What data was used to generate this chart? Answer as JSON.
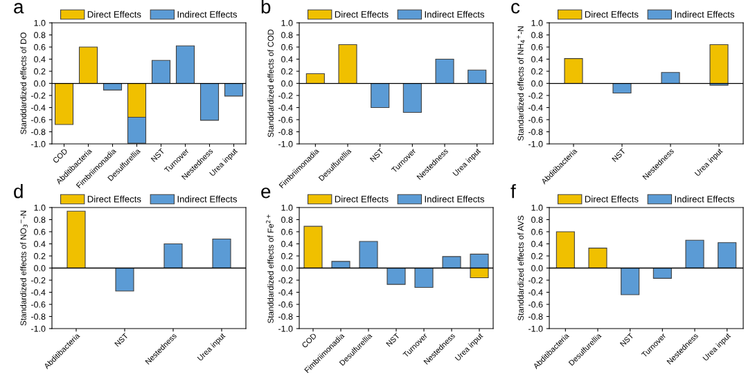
{
  "chart_data": [
    {
      "type": "bar",
      "stacked": true,
      "annotations": [
        "a"
      ],
      "ylabel": "Standdardized effects of DO",
      "categories": [
        "COD",
        "Abditibacteria",
        "Fimbriimonadia",
        "Desulfurellia",
        "NST",
        "Turnover",
        "Nestedness",
        "Urea input"
      ],
      "legend": "top",
      "series": [
        {
          "name": "Direct Effects",
          "color": "#f0c000",
          "values": [
            -0.68,
            0.6,
            null,
            -0.56,
            null,
            null,
            null,
            null
          ]
        },
        {
          "name": "Indirect Effects",
          "color": "#5b9bd5",
          "values": [
            null,
            null,
            -0.11,
            -0.43,
            0.38,
            0.62,
            -0.61,
            -0.21
          ]
        }
      ],
      "ylim": [
        -1.0,
        1.0
      ],
      "yticks": [
        {
          "value": -1.0,
          "label": "-1.0"
        },
        {
          "value": -0.8,
          "label": "-0.8"
        },
        {
          "value": -0.6,
          "label": "-0.6"
        },
        {
          "value": -0.4,
          "label": "-0.4"
        },
        {
          "value": -0.2,
          "label": "-0.2"
        },
        {
          "value": 0,
          "label": "0.0"
        },
        {
          "value": 0.2,
          "label": "0.2"
        },
        {
          "value": 0.4,
          "label": "0.4"
        },
        {
          "value": 0.6,
          "label": "0.6"
        },
        {
          "value": 0.8,
          "label": "0.8"
        },
        {
          "value": 1.0,
          "label": "1.0"
        }
      ]
    },
    {
      "type": "bar",
      "stacked": true,
      "annotations": [
        "b"
      ],
      "ylabel": "Standdardized effects of COD",
      "categories": [
        "Fimbriimonadia",
        "Desulfurellia",
        "NST",
        "Turnover",
        "Nestedness",
        "Urea input"
      ],
      "legend": "top",
      "series": [
        {
          "name": "Direct Effects",
          "color": "#f0c000",
          "values": [
            0.16,
            0.64,
            null,
            null,
            null,
            null
          ]
        },
        {
          "name": "Indirect Effects",
          "color": "#5b9bd5",
          "values": [
            null,
            null,
            -0.4,
            -0.48,
            0.4,
            0.22
          ]
        }
      ],
      "ylim": [
        -1.0,
        1.0
      ],
      "yticks": [
        {
          "value": -1.0,
          "label": "-1.0"
        },
        {
          "value": -0.8,
          "label": "-0.8"
        },
        {
          "value": -0.6,
          "label": "-0.6"
        },
        {
          "value": -0.4,
          "label": "-0.4"
        },
        {
          "value": -0.2,
          "label": "-0.2"
        },
        {
          "value": 0,
          "label": "0.0"
        },
        {
          "value": 0.2,
          "label": "0.2"
        },
        {
          "value": 0.4,
          "label": "0.4"
        },
        {
          "value": 0.6,
          "label": "0.6"
        },
        {
          "value": 0.8,
          "label": "0.8"
        },
        {
          "value": 1.0,
          "label": "1.0"
        }
      ]
    },
    {
      "type": "bar",
      "stacked": true,
      "annotations": [
        "c"
      ],
      "ylabel": "Standardized effects of NH$_{4}$$^{+}$-N",
      "categories": [
        "Abditibacteria",
        "NST",
        "Nestedness",
        "Urea input"
      ],
      "legend": "top",
      "series": [
        {
          "name": "Direct Effects",
          "color": "#f0c000",
          "values": [
            0.41,
            null,
            null,
            0.64
          ]
        },
        {
          "name": "Indirect Effects",
          "color": "#5b9bd5",
          "values": [
            null,
            -0.16,
            0.18,
            -0.03
          ]
        }
      ],
      "ylim": [
        -1.0,
        1.0
      ],
      "yticks": [
        {
          "value": -1.0,
          "label": "-1.0"
        },
        {
          "value": -0.8,
          "label": "-0.8"
        },
        {
          "value": -0.6,
          "label": "-0.6"
        },
        {
          "value": -0.4,
          "label": "-0.4"
        },
        {
          "value": -0.2,
          "label": "-0.2"
        },
        {
          "value": 0,
          "label": "0.0"
        },
        {
          "value": 0.2,
          "label": "0.2"
        },
        {
          "value": 0.4,
          "label": "0.4"
        },
        {
          "value": 0.6,
          "label": "0.6"
        },
        {
          "value": 0.8,
          "label": "0.8"
        },
        {
          "value": 1.0,
          "label": "1.0"
        }
      ]
    },
    {
      "type": "bar",
      "stacked": true,
      "annotations": [
        "d"
      ],
      "ylabel": "Standardized effects of NO$_{3}$$^{−}$-N",
      "categories": [
        "Abditibacteria",
        "NST",
        "Nestedness",
        "Urea input"
      ],
      "legend": "top",
      "series": [
        {
          "name": "Direct Effects",
          "color": "#f0c000",
          "values": [
            0.94,
            null,
            null,
            null
          ]
        },
        {
          "name": "Indirect Effects",
          "color": "#5b9bd5",
          "values": [
            null,
            -0.38,
            0.4,
            0.48
          ]
        }
      ],
      "ylim": [
        -1.0,
        1.0
      ],
      "yticks": [
        {
          "value": -1.0,
          "label": "-1.0"
        },
        {
          "value": -0.8,
          "label": "-0.8"
        },
        {
          "value": -0.6,
          "label": "-0.6"
        },
        {
          "value": -0.4,
          "label": "-0.4"
        },
        {
          "value": -0.2,
          "label": "-0.2"
        },
        {
          "value": 0,
          "label": "0.0"
        },
        {
          "value": 0.2,
          "label": "0.2"
        },
        {
          "value": 0.4,
          "label": "0.4"
        },
        {
          "value": 0.6,
          "label": "0.6"
        },
        {
          "value": 0.8,
          "label": "0.8"
        },
        {
          "value": 1.0,
          "label": "1.0"
        }
      ]
    },
    {
      "type": "bar",
      "stacked": true,
      "annotations": [
        "e"
      ],
      "ylabel": "Standdardized effects of Fe$^{2+}$",
      "categories": [
        "COD",
        "Fimbriimonadia",
        "Desulfurellia",
        "NST",
        "Turnover",
        "Nestedness",
        "Urea input"
      ],
      "legend": "top",
      "series": [
        {
          "name": "Direct Effects",
          "color": "#f0c000",
          "values": [
            0.69,
            null,
            null,
            null,
            null,
            null,
            -0.16
          ]
        },
        {
          "name": "Indirect Effects",
          "color": "#5b9bd5",
          "values": [
            null,
            0.11,
            0.44,
            -0.27,
            -0.32,
            0.19,
            0.23
          ]
        }
      ],
      "ylim": [
        -1.0,
        1.0
      ],
      "yticks": [
        {
          "value": -1.0,
          "label": "-1.0"
        },
        {
          "value": -0.8,
          "label": "-0.8"
        },
        {
          "value": -0.6,
          "label": "-0.6"
        },
        {
          "value": -0.4,
          "label": "-0.4"
        },
        {
          "value": -0.2,
          "label": "-0.2"
        },
        {
          "value": 0,
          "label": "0.0"
        },
        {
          "value": 0.2,
          "label": "0.2"
        },
        {
          "value": 0.4,
          "label": "0.4"
        },
        {
          "value": 0.6,
          "label": "0.6"
        },
        {
          "value": 0.8,
          "label": "0.8"
        },
        {
          "value": 1.0,
          "label": "1.0"
        }
      ]
    },
    {
      "type": "bar",
      "stacked": true,
      "annotations": [
        "f"
      ],
      "ylabel": "Standdardized effects of AVS",
      "categories": [
        "Abditibacteria",
        "Desulfurellia",
        "NST",
        "Turnover",
        "Nestedness",
        "Urea input"
      ],
      "legend": "top",
      "series": [
        {
          "name": "Direct Effects",
          "color": "#f0c000",
          "values": [
            0.6,
            0.33,
            null,
            null,
            null,
            null
          ]
        },
        {
          "name": "Indirect Effects",
          "color": "#5b9bd5",
          "values": [
            null,
            null,
            -0.44,
            -0.17,
            0.46,
            0.42
          ]
        }
      ],
      "ylim": [
        -1.0,
        1.0
      ],
      "yticks": [
        {
          "value": -1.0,
          "label": "-1.0"
        },
        {
          "value": -0.8,
          "label": "-0.8"
        },
        {
          "value": -0.6,
          "label": "-0.6"
        },
        {
          "value": -0.4,
          "label": "-0.4"
        },
        {
          "value": -0.2,
          "label": "-0.2"
        },
        {
          "value": 0,
          "label": "0.0"
        },
        {
          "value": 0.2,
          "label": "0.2"
        },
        {
          "value": 0.4,
          "label": "0.4"
        },
        {
          "value": 0.6,
          "label": "0.6"
        },
        {
          "value": 0.8,
          "label": "0.8"
        },
        {
          "value": 1.0,
          "label": "1.0"
        }
      ]
    }
  ]
}
